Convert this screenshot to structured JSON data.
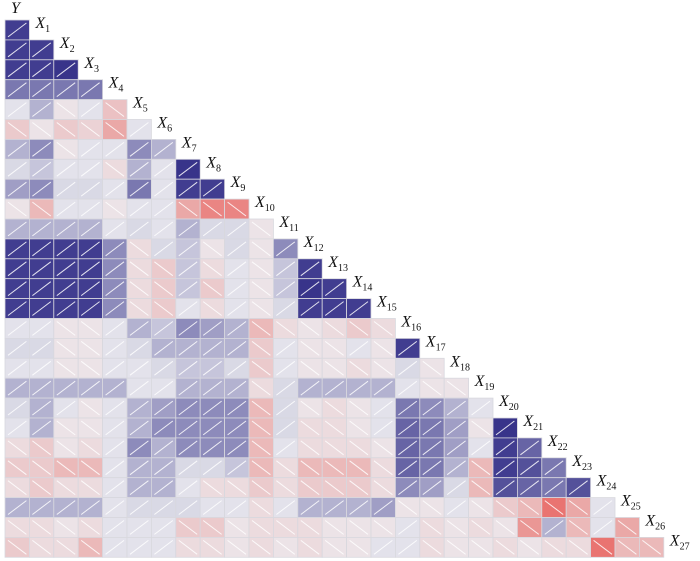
{
  "chart_data": {
    "type": "heatmap",
    "variables": [
      "Y",
      "X1",
      "X2",
      "X3",
      "X4",
      "X5",
      "X6",
      "X7",
      "X8",
      "X9",
      "X10",
      "X11",
      "X12",
      "X13",
      "X14",
      "X15",
      "X16",
      "X17",
      "X18",
      "X19",
      "X20",
      "X21",
      "X22",
      "X23",
      "X24",
      "X25",
      "X26",
      "X27"
    ],
    "values": [
      [
        0.9
      ],
      [
        0.9,
        0.9
      ],
      [
        0.9,
        0.9,
        0.95
      ],
      [
        0.6,
        0.6,
        0.6,
        0.6
      ],
      [
        0.05,
        0.3,
        -0.05,
        0.05,
        -0.25
      ],
      [
        -0.2,
        -0.05,
        -0.2,
        -0.15,
        -0.4,
        0.05
      ],
      [
        0.3,
        0.5,
        -0.05,
        0.05,
        0.05,
        0.5,
        0.3
      ],
      [
        0.1,
        0.2,
        0.05,
        0.05,
        -0.1,
        0.3,
        0.05,
        0.95
      ],
      [
        0.4,
        0.5,
        0.1,
        0.1,
        0.05,
        0.6,
        0.05,
        0.9,
        0.9
      ],
      [
        -0.05,
        -0.3,
        0.05,
        0.05,
        -0.05,
        0.05,
        0.05,
        -0.4,
        -0.6,
        -0.6
      ],
      [
        0.3,
        0.3,
        0.3,
        0.3,
        0.05,
        0.1,
        0.05,
        0.3,
        0.1,
        0.1,
        -0.05
      ],
      [
        0.9,
        0.9,
        0.9,
        0.9,
        0.5,
        -0.1,
        0.1,
        0.2,
        -0.05,
        0.1,
        -0.05,
        0.5
      ],
      [
        0.9,
        0.9,
        0.9,
        0.9,
        0.5,
        -0.1,
        -0.2,
        0.2,
        -0.1,
        0.05,
        -0.05,
        0.2,
        0.9
      ],
      [
        0.9,
        0.9,
        0.9,
        0.9,
        0.5,
        -0.1,
        -0.2,
        0.2,
        -0.2,
        0.05,
        -0.05,
        0.2,
        0.95,
        0.9
      ],
      [
        0.9,
        0.9,
        0.9,
        0.9,
        0.5,
        -0.1,
        -0.2,
        0.05,
        -0.1,
        0.05,
        -0.05,
        0.1,
        0.9,
        0.9,
        0.9
      ],
      [
        0.05,
        0.05,
        -0.05,
        -0.05,
        0.05,
        0.3,
        0.2,
        0.5,
        0.4,
        0.3,
        -0.3,
        -0.1,
        -0.05,
        -0.1,
        -0.2,
        -0.1
      ],
      [
        0.1,
        0.1,
        -0.05,
        -0.05,
        0.05,
        0.1,
        0.3,
        0.3,
        0.3,
        0.3,
        -0.2,
        0.05,
        -0.05,
        -0.05,
        0.05,
        -0.05,
        0.9
      ],
      [
        0.05,
        0.05,
        -0.05,
        -0.05,
        0.05,
        0.05,
        0.1,
        0.2,
        0.2,
        0.1,
        -0.2,
        0.05,
        -0.05,
        -0.05,
        -0.1,
        -0.05,
        0.1,
        -0.05
      ],
      [
        0.3,
        0.3,
        0.3,
        0.3,
        0.3,
        0.05,
        0.05,
        0.3,
        0.3,
        0.3,
        -0.1,
        0.1,
        0.3,
        0.3,
        0.3,
        0.3,
        0.05,
        -0.05,
        -0.05
      ],
      [
        0.1,
        0.3,
        0.05,
        -0.05,
        0.05,
        0.3,
        0.4,
        0.5,
        0.5,
        0.5,
        -0.3,
        0.1,
        -0.05,
        -0.1,
        -0.05,
        0.05,
        0.6,
        0.5,
        0.3,
        0.05
      ],
      [
        0.05,
        0.3,
        -0.05,
        -0.05,
        0.05,
        0.3,
        0.5,
        0.5,
        0.5,
        0.5,
        -0.3,
        0.1,
        -0.1,
        -0.1,
        -0.05,
        0.05,
        0.7,
        0.6,
        0.4,
        -0.05,
        0.95
      ],
      [
        -0.1,
        -0.2,
        -0.05,
        -0.1,
        0.05,
        0.5,
        0.3,
        0.5,
        0.5,
        0.5,
        -0.3,
        0.05,
        -0.1,
        -0.1,
        -0.1,
        -0.05,
        0.7,
        0.6,
        0.4,
        0.05,
        0.9,
        0.7
      ],
      [
        -0.2,
        -0.2,
        -0.3,
        -0.3,
        0.05,
        0.3,
        0.3,
        0.1,
        0.1,
        0.2,
        -0.3,
        -0.1,
        -0.3,
        -0.3,
        -0.3,
        -0.1,
        0.7,
        0.6,
        0.3,
        -0.3,
        0.9,
        0.8,
        0.6
      ],
      [
        -0.1,
        -0.2,
        -0.1,
        -0.1,
        0.05,
        0.3,
        0.3,
        0.05,
        -0.1,
        -0.1,
        -0.2,
        -0.1,
        -0.2,
        -0.2,
        -0.2,
        -0.1,
        0.5,
        0.4,
        0.1,
        -0.3,
        0.8,
        0.7,
        0.6,
        0.8
      ],
      [
        0.3,
        0.3,
        0.3,
        0.3,
        0.05,
        0.1,
        0.1,
        0.1,
        0.05,
        0.05,
        -0.1,
        0.05,
        0.3,
        0.3,
        0.3,
        0.4,
        -0.05,
        -0.05,
        0.05,
        -0.05,
        -0.2,
        -0.3,
        -0.7,
        -0.4,
        0.05
      ],
      [
        -0.1,
        -0.1,
        -0.05,
        -0.1,
        0.05,
        0.05,
        0.05,
        -0.2,
        -0.2,
        -0.05,
        -0.1,
        -0.1,
        -0.1,
        -0.05,
        -0.05,
        -0.05,
        0.05,
        -0.1,
        -0.05,
        -0.1,
        -0.05,
        -0.5,
        0.3,
        -0.3,
        0.05,
        -0.4
      ],
      [
        -0.2,
        -0.1,
        -0.1,
        -0.3,
        0.05,
        0.05,
        0.05,
        -0.1,
        -0.1,
        -0.05,
        -0.1,
        -0.05,
        -0.1,
        -0.05,
        -0.05,
        0.05,
        0.05,
        -0.1,
        -0.05,
        -0.05,
        -0.1,
        -0.05,
        -0.1,
        -0.1,
        -0.7,
        -0.3,
        -0.3
      ]
    ],
    "colors": {
      "positive": "#2e2a85",
      "neutral": "#ececf0",
      "negative": "#e8413a"
    }
  }
}
